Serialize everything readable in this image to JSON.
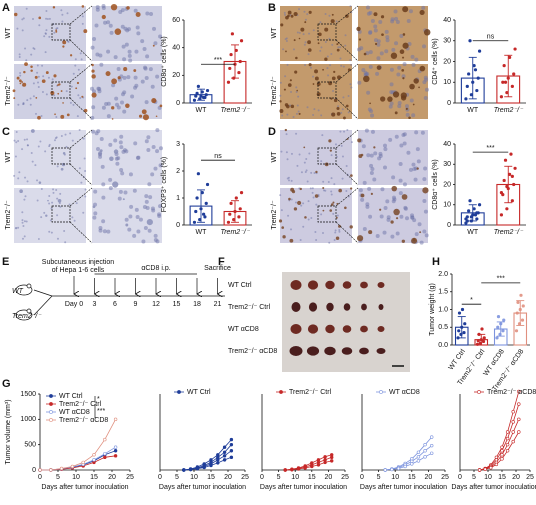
{
  "panel_labels": [
    "A",
    "B",
    "C",
    "D",
    "E",
    "F",
    "G",
    "H"
  ],
  "images": {
    "A": {
      "rows": [
        "WT",
        "Trem2⁻/⁻"
      ]
    },
    "B": {
      "rows": [
        "WT",
        "Trem2⁻/⁻"
      ]
    },
    "C": {
      "rows": [
        "WT",
        "Trem2⁻/⁻"
      ]
    },
    "D": {
      "rows": [
        "WT",
        "Trem2⁻/⁻"
      ]
    }
  },
  "timeline": {
    "injection": [
      "Subcutaneous injection",
      "of Hepa 1-6 cells"
    ],
    "treatment": "αCD8 i.p.",
    "end": "Sacrifice",
    "groups": [
      "WT",
      "Trem2⁻/⁻"
    ],
    "days": [
      "Day 0",
      "3",
      "6",
      "9",
      "12",
      "15",
      "18",
      "21"
    ]
  },
  "photo": {
    "rows": [
      "WT Ctrl",
      "Trem2⁻/⁻ Ctrl",
      "WT αCD8",
      "Trem2⁻/⁻ αCD8"
    ]
  },
  "chart_data": [
    {
      "type": "dotbar",
      "y_label": "CD8α⁺ cells (%)",
      "categories": [
        "WT",
        "Trem2⁻/⁻"
      ],
      "colors": [
        "#1f3d99",
        "#c62828"
      ],
      "values": [
        6,
        30
      ],
      "errors": [
        4,
        12
      ],
      "points": [
        [
          2,
          3,
          4,
          5,
          5,
          6,
          7,
          8,
          9,
          12,
          4
        ],
        [
          15,
          18,
          22,
          25,
          28,
          30,
          35,
          38,
          45,
          50
        ]
      ],
      "ylim": [
        0,
        60
      ],
      "yticks": [
        0,
        20,
        40,
        60
      ],
      "significance": [
        "***"
      ]
    },
    {
      "type": "dotbar",
      "y_label": "CD4⁺ cells (%)",
      "categories": [
        "WT",
        "Trem2⁻/⁻"
      ],
      "colors": [
        "#1f3d99",
        "#c62828"
      ],
      "values": [
        12,
        13
      ],
      "errors": [
        10,
        10
      ],
      "points": [
        [
          2,
          4,
          6,
          8,
          10,
          12,
          14,
          18,
          25,
          30,
          16
        ],
        [
          3,
          5,
          8,
          10,
          12,
          14,
          18,
          22,
          26,
          10
        ]
      ],
      "ylim": [
        0,
        40
      ],
      "yticks": [
        0,
        10,
        20,
        30,
        40
      ],
      "significance": [
        "ns"
      ]
    },
    {
      "type": "dotbar",
      "y_label": "FOXP3⁺ cells (%)",
      "categories": [
        "WT",
        "Trem2⁻/⁻"
      ],
      "colors": [
        "#1f3d99",
        "#c62828"
      ],
      "values": [
        0.7,
        0.5
      ],
      "errors": [
        0.6,
        0.4
      ],
      "points": [
        [
          0.1,
          0.2,
          0.3,
          0.5,
          0.6,
          0.8,
          1.0,
          1.2,
          1.5,
          1.9,
          0.4
        ],
        [
          0.1,
          0.2,
          0.3,
          0.4,
          0.5,
          0.6,
          0.8,
          1.0,
          1.2
        ]
      ],
      "ylim": [
        0,
        3
      ],
      "yticks": [
        0,
        1,
        2,
        3
      ],
      "significance": [
        "ns"
      ]
    },
    {
      "type": "dotbar",
      "y_label": "CD8α⁺ cells (%)",
      "categories": [
        "WT",
        "Trem2⁻/⁻"
      ],
      "colors": [
        "#1f3d99",
        "#c62828"
      ],
      "values": [
        6,
        20
      ],
      "errors": [
        4,
        9
      ],
      "points": [
        [
          1,
          2,
          3,
          4,
          5,
          6,
          7,
          8,
          10,
          12,
          5,
          3,
          4,
          6,
          2
        ],
        [
          5,
          8,
          12,
          15,
          18,
          20,
          22,
          25,
          28,
          32,
          35,
          16,
          19,
          24
        ]
      ],
      "ylim": [
        0,
        40
      ],
      "yticks": [
        0,
        10,
        20,
        30,
        40
      ],
      "significance": [
        "***"
      ]
    },
    {
      "type": "dotbar",
      "y_label": "Tumor weight (g)",
      "categories": [
        "WT Ctrl",
        "Trem2⁻/⁻ Ctrl",
        "WT αCD8",
        "Trem2⁻/⁻ αCD8"
      ],
      "colors": [
        "#1f3d99",
        "#c62828",
        "#7d94de",
        "#e0907f"
      ],
      "values": [
        0.5,
        0.15,
        0.45,
        0.9
      ],
      "errors": [
        0.3,
        0.15,
        0.2,
        0.35
      ],
      "points": [
        [
          0.2,
          0.3,
          0.35,
          0.4,
          0.5,
          0.6,
          0.9,
          1.0
        ],
        [
          0.02,
          0.05,
          0.1,
          0.12,
          0.15,
          0.2,
          0.3,
          0.45
        ],
        [
          0.2,
          0.3,
          0.4,
          0.5,
          0.6,
          0.7,
          0.8
        ],
        [
          0.4,
          0.6,
          0.7,
          0.9,
          1.0,
          1.1,
          1.2,
          1.4
        ]
      ],
      "ylim": [
        0,
        2
      ],
      "yticks": [
        {
          "value": 0,
          "label": "0.0"
        },
        {
          "value": 0.5,
          "label": "0.5"
        },
        {
          "value": 1,
          "label": "1.0"
        },
        {
          "value": 1.5,
          "label": "1.5"
        },
        {
          "value": 2,
          "label": "2.0"
        }
      ],
      "significance": [
        "*",
        "***"
      ]
    },
    {
      "type": "line",
      "y_label": "Tumor volume (mm³)",
      "x_label": "Days after tumor inoculation",
      "x": [
        0,
        3,
        6,
        9,
        12,
        15,
        18,
        21
      ],
      "series": [
        {
          "name": "WT Ctrl",
          "color": "#1f3d99",
          "marker": "filled",
          "values": [
            0,
            0,
            20,
            50,
            100,
            180,
            300,
            380
          ]
        },
        {
          "name": "Trem2⁻/⁻ Ctrl",
          "color": "#c62828",
          "marker": "filled",
          "values": [
            0,
            0,
            15,
            40,
            80,
            150,
            250,
            280
          ]
        },
        {
          "name": "WT αCD8",
          "color": "#7d94de",
          "marker": "open",
          "values": [
            0,
            0,
            25,
            60,
            110,
            200,
            320,
            450
          ]
        },
        {
          "name": "Trem2⁻/⁻ αCD8",
          "color": "#e0907f",
          "marker": "open",
          "values": [
            0,
            0,
            30,
            70,
            150,
            300,
            600,
            1000
          ]
        }
      ],
      "xlim": [
        0,
        25
      ],
      "xticks": [
        0,
        5,
        10,
        15,
        20,
        25
      ],
      "ylim": [
        0,
        1500
      ],
      "yticks": [
        0,
        500,
        1000,
        1500
      ],
      "significance": [
        "*",
        "***"
      ]
    },
    {
      "type": "line",
      "x_label": "Days after tumor inoculation",
      "x": [
        7,
        9,
        11,
        13,
        15,
        17,
        19,
        21
      ],
      "series": [
        {
          "name": "WT Ctrl",
          "color": "#1f3d99",
          "marker": "filled",
          "values": [
            0,
            20,
            60,
            120,
            200,
            300,
            450,
            600
          ]
        },
        {
          "color": "#1f3d99",
          "marker": "filled",
          "values": [
            0,
            15,
            40,
            90,
            150,
            250,
            350,
            500
          ]
        },
        {
          "color": "#1f3d99",
          "marker": "filled",
          "values": [
            0,
            10,
            30,
            70,
            120,
            200,
            280,
            380
          ]
        },
        {
          "color": "#1f3d99",
          "marker": "filled",
          "values": [
            0,
            10,
            25,
            50,
            90,
            140,
            200,
            250
          ]
        }
      ],
      "xlim": [
        0,
        25
      ],
      "xticks": [
        0,
        5,
        10,
        15,
        20,
        25
      ],
      "ylim": [
        0,
        1500
      ]
    },
    {
      "type": "line",
      "x_label": "Days after tumor inoculation",
      "x": [
        7,
        9,
        11,
        13,
        15,
        17,
        19,
        21
      ],
      "series": [
        {
          "name": "Trem2⁻/⁻ Ctrl",
          "color": "#c62828",
          "marker": "filled",
          "values": [
            0,
            15,
            40,
            80,
            140,
            200,
            260,
            300
          ]
        },
        {
          "color": "#c62828",
          "marker": "filled",
          "values": [
            0,
            10,
            30,
            60,
            100,
            150,
            200,
            250
          ]
        },
        {
          "color": "#c62828",
          "marker": "filled",
          "values": [
            0,
            5,
            20,
            40,
            70,
            100,
            150,
            180
          ]
        }
      ],
      "xlim": [
        0,
        25
      ],
      "xticks": [
        0,
        5,
        10,
        15,
        20,
        25
      ],
      "ylim": [
        0,
        1500
      ]
    },
    {
      "type": "line",
      "x_label": "Days after tumor inoculation",
      "x": [
        7,
        9,
        11,
        13,
        15,
        17,
        19,
        21
      ],
      "series": [
        {
          "name": "WT αCD8",
          "color": "#7d94de",
          "marker": "open",
          "values": [
            0,
            20,
            60,
            130,
            220,
            350,
            500,
            650
          ]
        },
        {
          "color": "#7d94de",
          "marker": "open",
          "values": [
            0,
            15,
            45,
            100,
            170,
            260,
            380,
            480
          ]
        },
        {
          "color": "#7d94de",
          "marker": "open",
          "values": [
            0,
            10,
            30,
            70,
            120,
            180,
            260,
            330
          ]
        }
      ],
      "xlim": [
        0,
        25
      ],
      "xticks": [
        0,
        5,
        10,
        15,
        20,
        25
      ],
      "ylim": [
        0,
        1500
      ]
    },
    {
      "type": "line",
      "x_label": "Days after tumor inoculation",
      "x": [
        7,
        9,
        11,
        13,
        15,
        17,
        19,
        21
      ],
      "series": [
        {
          "name": "Trem2⁻/⁻ αCD8",
          "color": "#c62828",
          "marker": "open",
          "values": [
            0,
            30,
            100,
            250,
            450,
            750,
            1150,
            1550
          ]
        },
        {
          "color": "#c62828",
          "marker": "open",
          "values": [
            0,
            25,
            80,
            200,
            380,
            620,
            950,
            1300
          ]
        },
        {
          "color": "#c62828",
          "marker": "open",
          "values": [
            0,
            20,
            60,
            150,
            300,
            500,
            750,
            1000
          ]
        },
        {
          "color": "#c62828",
          "marker": "open",
          "values": [
            0,
            15,
            45,
            110,
            220,
            380,
            560,
            750
          ]
        }
      ],
      "xlim": [
        0,
        25
      ],
      "xticks": [
        0,
        5,
        10,
        15,
        20,
        25
      ],
      "ylim": [
        0,
        1500
      ]
    }
  ]
}
